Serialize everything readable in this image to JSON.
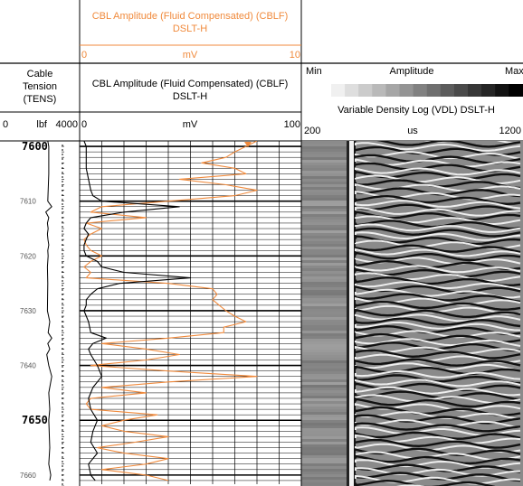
{
  "header": {
    "cblf_top": {
      "title_line1": "CBL Amplitude (Fluid Compensated) (CBLF)",
      "title_line2": "DSLT-H",
      "scale_min": "0",
      "scale_unit": "mV",
      "scale_max": "10"
    },
    "cblf_main": {
      "title_line1": "CBL Amplitude (Fluid Compensated) (CBLF)",
      "title_line2": "DSLT-H",
      "scale_min": "0",
      "scale_unit": "mV",
      "scale_max": "100"
    },
    "tension": {
      "line1": "Cable",
      "line2": "Tension",
      "line3": "(TENS)",
      "scale_min": "0",
      "scale_unit": "lbf",
      "scale_max": "4000"
    },
    "vdl": {
      "amp_min": "Min",
      "amp_label": "Amplitude",
      "amp_max": "Max",
      "title": "Variable Density Log (VDL) DSLT-H",
      "scale_min": "200",
      "scale_unit": "us",
      "scale_max": "1200"
    }
  },
  "colors": {
    "cblf": "#f08a3c",
    "tension": "#000000",
    "grid": "#000000"
  },
  "chart_data": {
    "type": "line",
    "y_axis": {
      "label": "Depth",
      "range": [
        7599,
        7662
      ],
      "inverted": true,
      "major_ticks": [
        "7600",
        "7650"
      ],
      "minor_ticks": [
        "7610",
        "7620",
        "7630",
        "7640",
        "7660"
      ]
    },
    "series": [
      {
        "name": "CBL Amplitude (Fluid Compensated) (CBLF)",
        "scale_min": 0,
        "scale_max": 10,
        "depth": [
          7599,
          7600,
          7601,
          7602,
          7603,
          7604,
          7605,
          7606,
          7607,
          7608,
          7609,
          7610,
          7611,
          7612,
          7613,
          7614,
          7615,
          7616,
          7617,
          7618,
          7619,
          7620,
          7621,
          7622,
          7623,
          7624,
          7625,
          7626,
          7627,
          7628,
          7629,
          7630,
          7631,
          7632,
          7633,
          7634,
          7635,
          7636,
          7637,
          7638,
          7639,
          7640,
          7641,
          7642,
          7643,
          7644,
          7645,
          7646,
          7647,
          7648,
          7649,
          7650,
          7651,
          7652,
          7653,
          7654,
          7655,
          7656,
          7657,
          7658,
          7659,
          7660,
          7661
        ],
        "value": [
          8.0,
          7.5,
          7.0,
          6.6,
          5.5,
          7.0,
          7.5,
          4.5,
          6.6,
          8.0,
          7.0,
          4.0,
          1.0,
          0.5,
          3.0,
          0.3,
          1.0,
          0.5,
          0.2,
          0.3,
          0.5,
          1.0,
          0.5,
          0.2,
          0.5,
          0.3,
          4.0,
          6.0,
          6.2,
          6.0,
          6.3,
          6.6,
          7.0,
          7.5,
          6.5,
          6.5,
          4.0,
          1.0,
          3.0,
          4.5,
          3.0,
          0.5,
          4.0,
          8.0,
          4.0,
          1.0,
          3.0,
          0.5,
          0.3,
          0.5,
          3.5,
          2.0,
          1.0,
          2.0,
          4.0,
          2.5,
          0.8,
          2.0,
          4.0,
          3.0,
          1.0,
          3.0,
          4.0
        ]
      },
      {
        "name": "CBL Amplitude (Fluid Compensated) (CBLF)",
        "scale_min": 0,
        "scale_max": 100,
        "depth": [
          7599,
          7600,
          7602,
          7604,
          7606,
          7608,
          7609,
          7610,
          7611,
          7612,
          7613,
          7614,
          7615,
          7616,
          7617,
          7618,
          7619,
          7620,
          7621,
          7622,
          7623,
          7624,
          7625,
          7626,
          7627,
          7628,
          7629,
          7630,
          7632,
          7634,
          7635,
          7636,
          7637,
          7638,
          7640,
          7642,
          7644,
          7646,
          7648,
          7650,
          7652,
          7654,
          7656,
          7658,
          7660,
          7661
        ],
        "value": [
          2,
          3,
          3,
          3,
          4,
          5,
          6,
          10,
          45,
          20,
          5,
          3,
          2,
          4,
          3,
          2,
          2,
          3,
          8,
          10,
          20,
          50,
          18,
          8,
          5,
          3,
          3,
          2,
          4,
          5,
          12,
          6,
          4,
          5,
          8,
          10,
          6,
          4,
          5,
          8,
          6,
          5,
          8,
          4,
          5,
          7
        ]
      },
      {
        "name": "Cable Tension (TENS)",
        "scale_min": 0,
        "scale_max": 4000,
        "depth": [
          7599,
          7600,
          7605,
          7610,
          7611,
          7612,
          7613,
          7614,
          7615,
          7616,
          7617,
          7618,
          7619,
          7620,
          7622,
          7625,
          7630,
          7632,
          7634,
          7635,
          7636,
          7637,
          7638,
          7640,
          7642,
          7645,
          7648,
          7650,
          7655,
          7658,
          7660,
          7661
        ],
        "value": [
          2400,
          2450,
          2450,
          2400,
          2600,
          2300,
          2450,
          2380,
          2420,
          2380,
          2410,
          2450,
          2400,
          2420,
          2380,
          2400,
          2380,
          2500,
          2420,
          2600,
          2400,
          2500,
          2350,
          2450,
          2600,
          2450,
          2500,
          2450,
          2500,
          2450,
          2550,
          2500
        ]
      }
    ],
    "vdl": {
      "type": "heatmap",
      "title": "Variable Density Log (VDL) DSLT-H",
      "time_range_us": [
        200,
        1200
      ],
      "amplitude_scale": [
        "Min",
        "Max"
      ]
    }
  }
}
